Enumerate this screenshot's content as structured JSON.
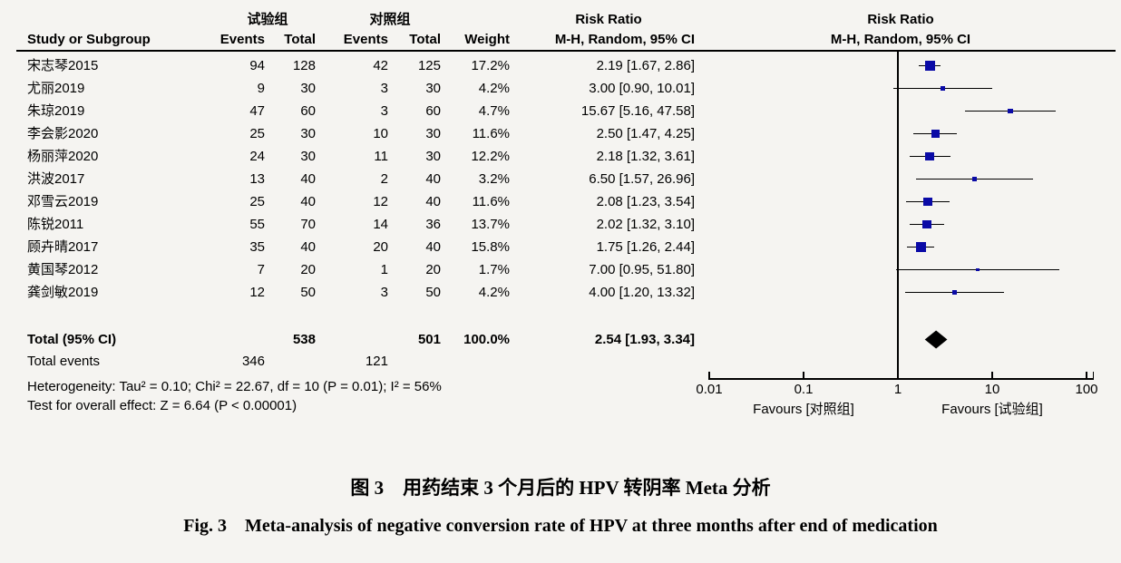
{
  "figure": {
    "marker_color": "#0a0aa6",
    "background": "#f5f4f1",
    "caption_cn": "图 3　用药结束 3 个月后的 HPV 转阴率 Meta 分析",
    "caption_en": "Fig. 3　Meta-analysis of negative conversion rate of HPV at three months after end of medication"
  },
  "chart_data": {
    "type": "forest_plot",
    "effect_measure": "Risk Ratio",
    "method": "M-H, Random, 95% CI",
    "header": {
      "study_col": "Study or Subgroup",
      "group1": "试验组",
      "group2": "对照组",
      "events": "Events",
      "total": "Total",
      "weight": "Weight",
      "risk_ratio": "Risk Ratio",
      "mh_random": "M-H, Random, 95% CI"
    },
    "x_axis": {
      "scale": "log",
      "range": [
        0.01,
        100
      ],
      "ticks": [
        {
          "value": 0.01,
          "label": "0.01"
        },
        {
          "value": 0.1,
          "label": "0.1"
        },
        {
          "value": 1,
          "label": "1"
        },
        {
          "value": 10,
          "label": "10"
        },
        {
          "value": 100,
          "label": "100"
        }
      ],
      "favours_left": "Favours [对照组]",
      "favours_right": "Favours [试验组]"
    },
    "studies": [
      {
        "name": "宋志琴2015",
        "events_exp": "94",
        "total_exp": "128",
        "events_ctrl": "42",
        "total_ctrl": "125",
        "weight": "17.2%",
        "weight_val": 17.2,
        "rr": 2.19,
        "lo": 1.67,
        "hi": 2.86,
        "ci_label": "2.19 [1.67, 2.86]"
      },
      {
        "name": "尤丽2019",
        "events_exp": "9",
        "total_exp": "30",
        "events_ctrl": "3",
        "total_ctrl": "30",
        "weight": "4.2%",
        "weight_val": 4.2,
        "rr": 3.0,
        "lo": 0.9,
        "hi": 10.01,
        "ci_label": "3.00 [0.90, 10.01]"
      },
      {
        "name": "朱琼2019",
        "events_exp": "47",
        "total_exp": "60",
        "events_ctrl": "3",
        "total_ctrl": "60",
        "weight": "4.7%",
        "weight_val": 4.7,
        "rr": 15.67,
        "lo": 5.16,
        "hi": 47.58,
        "ci_label": "15.67 [5.16, 47.58]"
      },
      {
        "name": "李会影2020",
        "events_exp": "25",
        "total_exp": "30",
        "events_ctrl": "10",
        "total_ctrl": "30",
        "weight": "11.6%",
        "weight_val": 11.6,
        "rr": 2.5,
        "lo": 1.47,
        "hi": 4.25,
        "ci_label": "2.50 [1.47, 4.25]"
      },
      {
        "name": "杨丽萍2020",
        "events_exp": "24",
        "total_exp": "30",
        "events_ctrl": "11",
        "total_ctrl": "30",
        "weight": "12.2%",
        "weight_val": 12.2,
        "rr": 2.18,
        "lo": 1.32,
        "hi": 3.61,
        "ci_label": "2.18 [1.32, 3.61]"
      },
      {
        "name": "洪波2017",
        "events_exp": "13",
        "total_exp": "40",
        "events_ctrl": "2",
        "total_ctrl": "40",
        "weight": "3.2%",
        "weight_val": 3.2,
        "rr": 6.5,
        "lo": 1.57,
        "hi": 26.96,
        "ci_label": "6.50 [1.57, 26.96]"
      },
      {
        "name": "邓雪云2019",
        "events_exp": "25",
        "total_exp": "40",
        "events_ctrl": "12",
        "total_ctrl": "40",
        "weight": "11.6%",
        "weight_val": 11.6,
        "rr": 2.08,
        "lo": 1.23,
        "hi": 3.54,
        "ci_label": "2.08 [1.23, 3.54]"
      },
      {
        "name": "陈锐2011",
        "events_exp": "55",
        "total_exp": "70",
        "events_ctrl": "14",
        "total_ctrl": "36",
        "weight": "13.7%",
        "weight_val": 13.7,
        "rr": 2.02,
        "lo": 1.32,
        "hi": 3.1,
        "ci_label": "2.02 [1.32, 3.10]"
      },
      {
        "name": "顾卉晴2017",
        "events_exp": "35",
        "total_exp": "40",
        "events_ctrl": "20",
        "total_ctrl": "40",
        "weight": "15.8%",
        "weight_val": 15.8,
        "rr": 1.75,
        "lo": 1.26,
        "hi": 2.44,
        "ci_label": "1.75 [1.26, 2.44]"
      },
      {
        "name": "黄国琴2012",
        "events_exp": "7",
        "total_exp": "20",
        "events_ctrl": "1",
        "total_ctrl": "20",
        "weight": "1.7%",
        "weight_val": 1.7,
        "rr": 7.0,
        "lo": 0.95,
        "hi": 51.8,
        "ci_label": "7.00 [0.95, 51.80]"
      },
      {
        "name": "龚剑敏2019",
        "events_exp": "12",
        "total_exp": "50",
        "events_ctrl": "3",
        "total_ctrl": "50",
        "weight": "4.2%",
        "weight_val": 4.2,
        "rr": 4.0,
        "lo": 1.2,
        "hi": 13.32,
        "ci_label": "4.00 [1.20, 13.32]"
      }
    ],
    "total": {
      "label": "Total (95% CI)",
      "total_exp": "538",
      "total_ctrl": "501",
      "weight": "100.0%",
      "rr": 2.54,
      "lo": 1.93,
      "hi": 3.34,
      "ci_label": "2.54 [1.93, 3.34]"
    },
    "total_events": {
      "label": "Total events",
      "events_exp": "346",
      "events_ctrl": "121"
    },
    "heterogeneity": "Heterogeneity: Tau² = 0.10; Chi² = 22.67, df = 10 (P = 0.01); I² = 56%",
    "overall_effect": "Test for overall effect: Z = 6.64 (P < 0.00001)"
  }
}
